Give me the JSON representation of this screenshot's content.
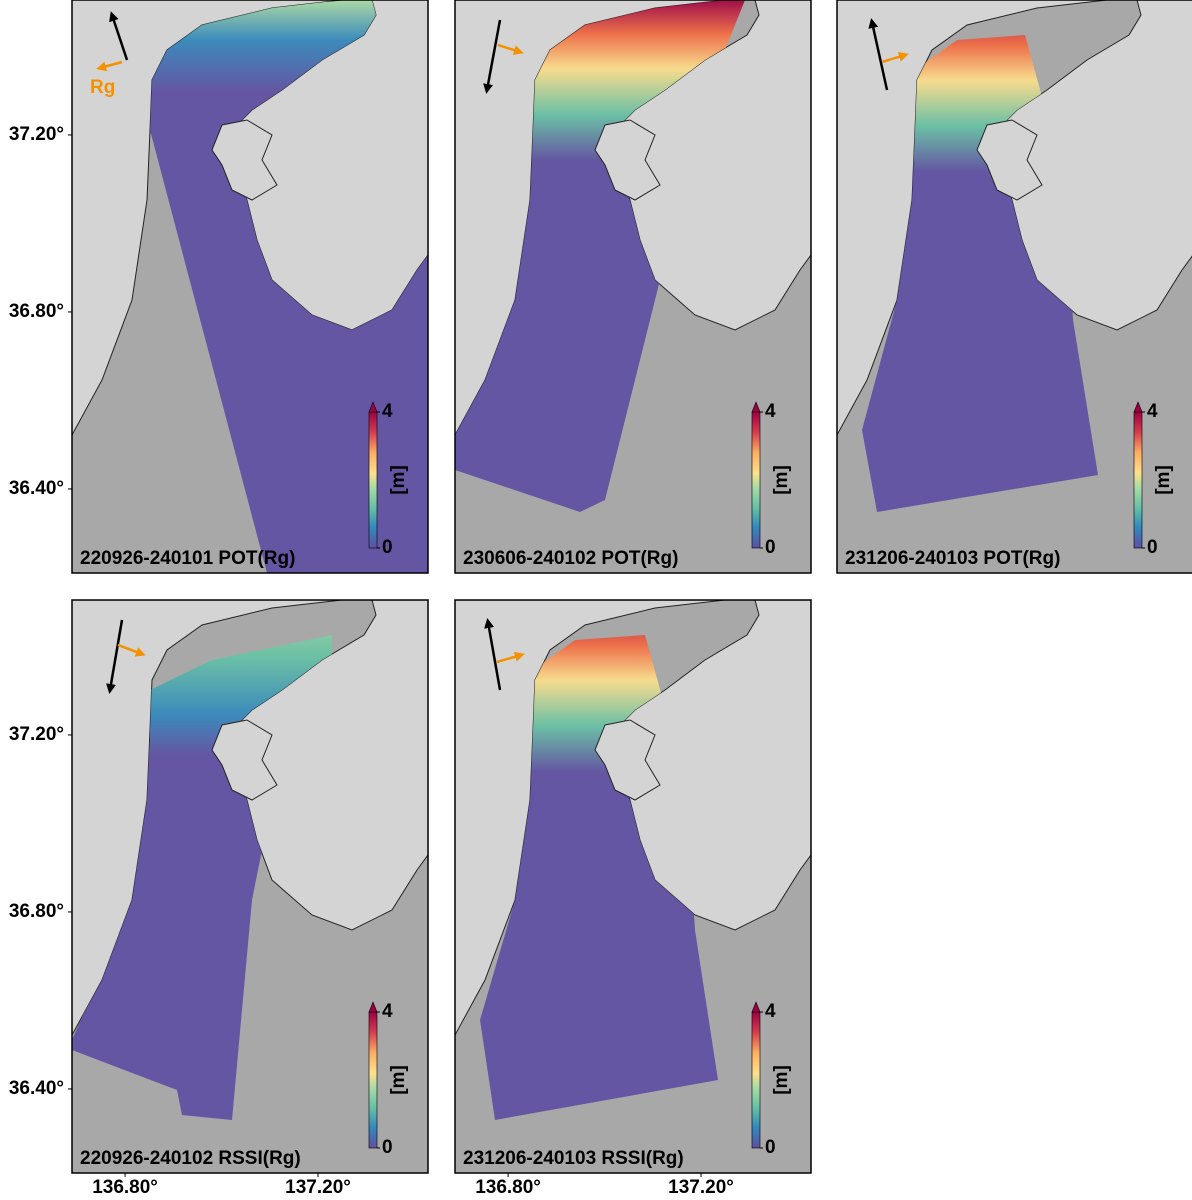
{
  "map": {
    "lat_lim": [
      36.21,
      37.505
    ],
    "lon_lim": [
      136.69,
      137.428
    ],
    "lat_ticks": [
      {
        "value": 37.2,
        "label": "37.20°"
      },
      {
        "value": 36.8,
        "label": "36.80°"
      },
      {
        "value": 36.4,
        "label": "36.40°"
      }
    ],
    "lon_ticks": [
      {
        "value": 136.8,
        "label": "136.80°"
      },
      {
        "value": 137.2,
        "label": "137.20°"
      }
    ],
    "range_label": "Rg",
    "colorbar": {
      "clim": [
        0,
        4
      ],
      "ticks": [
        0,
        4
      ],
      "unit": "[m]"
    }
  },
  "panels": [
    {
      "label": "220926-240101 POT(Rg)"
    },
    {
      "label": "230606-240102 POT(Rg)"
    },
    {
      "label": "231206-240103 POT(Rg)"
    },
    {
      "label": "220926-240102 RSSI(Rg)"
    },
    {
      "label": "231206-240103 RSSI(Rg)"
    }
  ]
}
